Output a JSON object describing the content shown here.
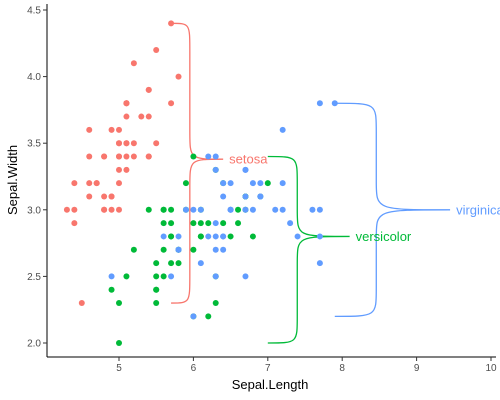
{
  "chart_data": {
    "type": "scatter",
    "title": "",
    "xlabel": "Sepal.Length",
    "ylabel": "Sepal.Width",
    "xlim": [
      4.05,
      10
    ],
    "ylim": [
      1.9,
      4.5
    ],
    "x_ticks": [
      5,
      6,
      7,
      8,
      9,
      10
    ],
    "x_tick_labels": [
      "5",
      "6",
      "7",
      "8",
      "9",
      "10"
    ],
    "y_ticks": [
      2.0,
      2.5,
      3.0,
      3.5,
      4.0,
      4.5
    ],
    "y_tick_labels": [
      "2.0",
      "2.5",
      "3.0",
      "3.5",
      "4.0",
      "4.5"
    ],
    "grid": false,
    "legend": "none",
    "series": [
      {
        "name": "setosa",
        "color": "#F8766D",
        "x": [
          5.1,
          4.9,
          4.7,
          4.6,
          5.0,
          5.4,
          4.6,
          5.0,
          4.4,
          4.9,
          5.4,
          4.8,
          4.8,
          4.3,
          5.8,
          5.7,
          5.4,
          5.1,
          5.7,
          5.1,
          5.4,
          5.1,
          4.6,
          5.1,
          4.8,
          5.0,
          5.0,
          5.2,
          5.2,
          4.7,
          4.8,
          5.4,
          5.2,
          5.5,
          4.9,
          5.0,
          5.5,
          4.9,
          4.4,
          5.1,
          5.0,
          4.5,
          4.4,
          5.0,
          5.1,
          4.8,
          5.1,
          4.6,
          5.3,
          5.0
        ],
        "y": [
          3.5,
          3.0,
          3.2,
          3.1,
          3.6,
          3.9,
          3.4,
          3.4,
          2.9,
          3.1,
          3.7,
          3.4,
          3.0,
          3.0,
          4.0,
          4.4,
          3.9,
          3.5,
          3.8,
          3.8,
          3.4,
          3.7,
          3.6,
          3.3,
          3.4,
          3.0,
          3.4,
          3.5,
          3.4,
          3.2,
          3.1,
          3.4,
          4.1,
          4.2,
          3.1,
          3.2,
          3.5,
          3.6,
          3.0,
          3.4,
          3.5,
          2.3,
          3.2,
          3.5,
          3.8,
          3.0,
          3.8,
          3.2,
          3.7,
          3.3
        ]
      },
      {
        "name": "versicolor",
        "color": "#00BA38",
        "x": [
          7.0,
          6.4,
          6.9,
          5.5,
          6.5,
          5.7,
          6.3,
          4.9,
          6.6,
          5.2,
          5.0,
          5.9,
          6.0,
          6.1,
          5.6,
          6.7,
          5.6,
          5.8,
          6.2,
          5.6,
          5.9,
          6.1,
          6.3,
          6.1,
          6.4,
          6.6,
          6.8,
          6.7,
          6.0,
          5.7,
          5.5,
          5.5,
          5.8,
          6.0,
          5.4,
          6.0,
          6.7,
          6.3,
          5.6,
          5.5,
          5.5,
          6.1,
          5.8,
          5.0,
          5.6,
          5.7,
          5.7,
          6.2,
          5.1,
          5.7
        ],
        "y": [
          3.2,
          3.2,
          3.1,
          2.3,
          2.8,
          2.8,
          3.3,
          2.4,
          2.9,
          2.7,
          2.0,
          3.0,
          2.2,
          2.9,
          2.9,
          3.1,
          3.0,
          2.7,
          2.2,
          2.5,
          3.2,
          2.8,
          2.5,
          2.8,
          2.9,
          3.0,
          2.8,
          3.0,
          2.9,
          2.6,
          2.4,
          2.4,
          2.7,
          2.7,
          3.0,
          3.4,
          3.1,
          2.3,
          3.0,
          2.5,
          2.6,
          3.0,
          2.6,
          2.3,
          2.7,
          3.0,
          2.9,
          2.9,
          2.5,
          2.8
        ]
      },
      {
        "name": "virginica",
        "color": "#619CFF",
        "x": [
          6.3,
          5.8,
          7.1,
          6.3,
          6.5,
          7.6,
          4.9,
          7.3,
          6.7,
          7.2,
          6.5,
          6.4,
          6.8,
          5.7,
          5.8,
          6.4,
          6.5,
          7.7,
          7.7,
          6.0,
          6.9,
          5.6,
          7.7,
          6.3,
          6.7,
          7.2,
          6.2,
          6.1,
          6.4,
          7.2,
          7.4,
          7.9,
          6.4,
          6.3,
          6.1,
          7.7,
          6.3,
          6.4,
          6.0,
          6.9,
          6.7,
          6.9,
          5.8,
          6.8,
          6.7,
          6.7,
          6.3,
          6.5,
          6.2,
          5.9
        ],
        "y": [
          3.3,
          2.7,
          3.0,
          2.9,
          3.0,
          3.0,
          2.5,
          2.9,
          2.5,
          3.6,
          3.2,
          2.7,
          3.0,
          2.5,
          2.8,
          3.2,
          3.0,
          3.8,
          2.6,
          2.2,
          3.2,
          2.8,
          2.8,
          2.7,
          3.3,
          3.2,
          2.8,
          3.0,
          2.8,
          3.0,
          2.8,
          3.8,
          2.8,
          2.8,
          2.6,
          3.0,
          3.4,
          3.1,
          3.0,
          3.1,
          3.1,
          3.1,
          2.7,
          3.2,
          3.3,
          3.0,
          2.5,
          3.0,
          3.4,
          3.0
        ]
      }
    ],
    "braces": [
      {
        "series": "setosa",
        "label": "setosa",
        "x_start": 5.7,
        "y_low": 2.3,
        "y_high": 4.4,
        "x_tip": 6.4,
        "y_tip": 3.38
      },
      {
        "series": "versicolor",
        "label": "versicolor",
        "x_start": 7.0,
        "y_low": 2.0,
        "y_high": 3.4,
        "x_tip": 8.1,
        "y_tip": 2.8
      },
      {
        "series": "virginica",
        "label": "virginica",
        "x_start": 7.9,
        "y_low": 2.2,
        "y_high": 3.8,
        "x_tip": 9.45,
        "y_tip": 3.0
      }
    ]
  }
}
